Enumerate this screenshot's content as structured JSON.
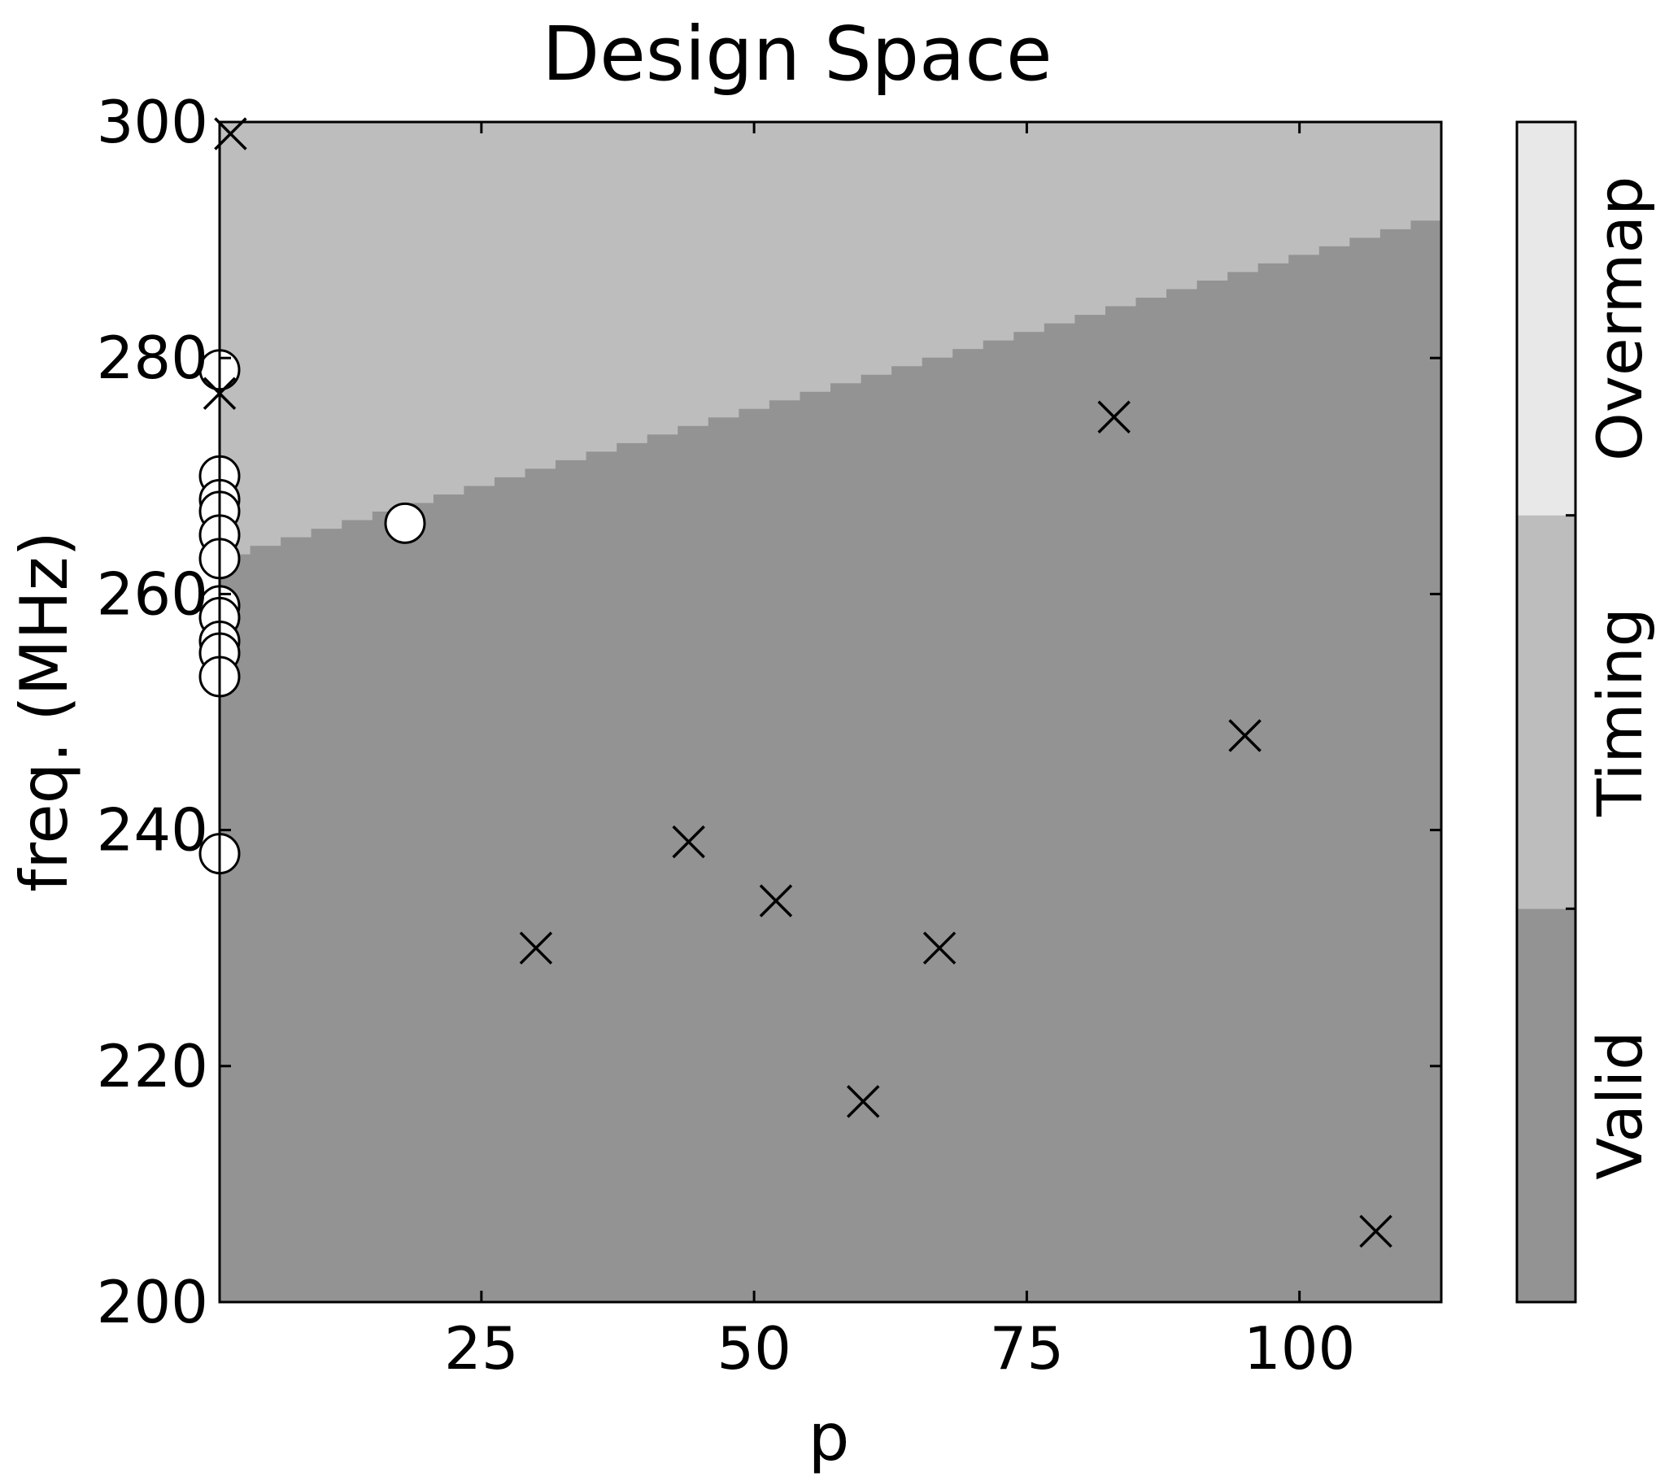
{
  "chart_data": {
    "type": "scatter",
    "title": "Design Space",
    "xlabel": "p",
    "ylabel": "freq. (MHz)",
    "xlim": [
      1,
      113
    ],
    "ylim": [
      200,
      300
    ],
    "xticks": [
      25,
      50,
      75,
      100
    ],
    "yticks": [
      200,
      220,
      240,
      260,
      280,
      300
    ],
    "grid": false,
    "regions": {
      "type": "filled-contour",
      "boundary": {
        "description": "Timing/Valid boundary (freq. MHz as a function of p), stepped",
        "p": [
          1,
          113
        ],
        "freq": [
          263,
          292
        ]
      },
      "colors": {
        "Valid": "#939393",
        "Timing": "#bdbdbd",
        "Overmap": "#e8e8e8"
      }
    },
    "colorbar": {
      "labels": [
        "Valid",
        "Timing",
        "Overmap"
      ],
      "colors": [
        "#939393",
        "#bdbdbd",
        "#e8e8e8"
      ]
    },
    "series": [
      {
        "marker": "circle",
        "points": [
          [
            1,
            279
          ],
          [
            1,
            270
          ],
          [
            1,
            268
          ],
          [
            1,
            267
          ],
          [
            1,
            265
          ],
          [
            1,
            263
          ],
          [
            1,
            259
          ],
          [
            1,
            258
          ],
          [
            1,
            256
          ],
          [
            1,
            255
          ],
          [
            1,
            253
          ],
          [
            1,
            238
          ],
          [
            18,
            266
          ]
        ]
      },
      {
        "marker": "x",
        "points": [
          [
            2,
            299
          ],
          [
            1,
            277
          ],
          [
            30,
            230
          ],
          [
            44,
            239
          ],
          [
            52,
            234
          ],
          [
            60,
            217
          ],
          [
            67,
            230
          ],
          [
            83,
            275
          ],
          [
            95,
            248
          ],
          [
            107,
            206
          ]
        ]
      }
    ]
  }
}
